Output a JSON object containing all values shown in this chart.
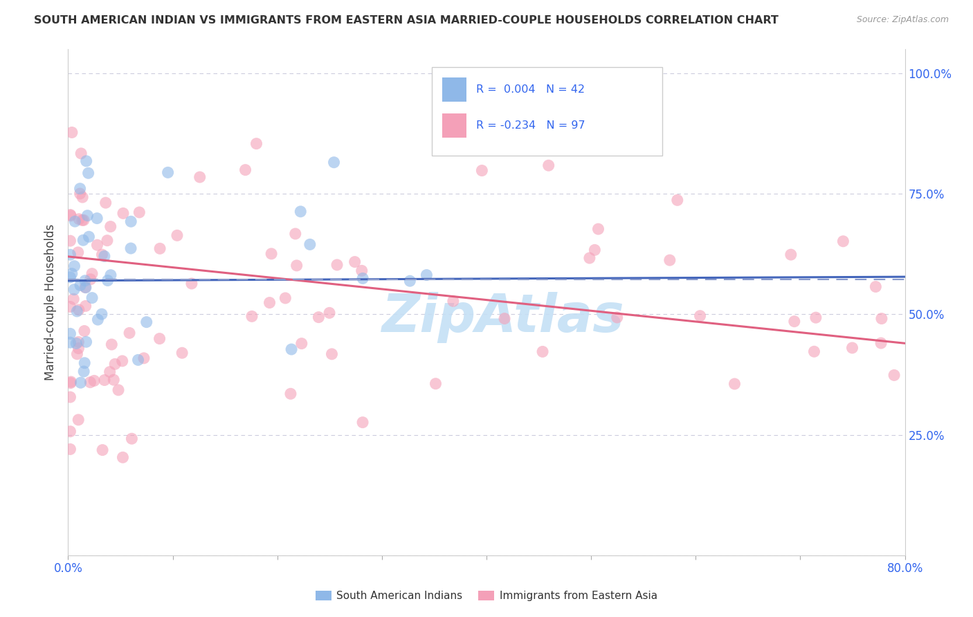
{
  "title": "SOUTH AMERICAN INDIAN VS IMMIGRANTS FROM EASTERN ASIA MARRIED-COUPLE HOUSEHOLDS CORRELATION CHART",
  "source": "Source: ZipAtlas.com",
  "ylabel": "Married-couple Households",
  "x_min": 0.0,
  "x_max": 0.8,
  "y_min": 0.0,
  "y_max": 1.05,
  "x_tick_positions": [
    0.0,
    0.1,
    0.2,
    0.3,
    0.4,
    0.5,
    0.6,
    0.7,
    0.8
  ],
  "x_tick_labels": [
    "0.0%",
    "",
    "",
    "",
    "",
    "",
    "",
    "",
    "80.0%"
  ],
  "y_tick_positions": [
    0.0,
    0.25,
    0.5,
    0.75,
    1.0
  ],
  "y_tick_labels_right": [
    "",
    "25.0%",
    "50.0%",
    "75.0%",
    "100.0%"
  ],
  "blue_color": "#8FB8E8",
  "pink_color": "#F4A0B8",
  "blue_line_color": "#4466BB",
  "pink_line_color": "#E06080",
  "dashed_line_y": 0.573,
  "dashed_line_color": "#8899CC",
  "grid_color": "#CCCCDD",
  "watermark_color": "#C5E0F5",
  "blue_R": 0.004,
  "blue_N": 42,
  "pink_R": -0.234,
  "pink_N": 97,
  "blue_trend_x0": 0.0,
  "blue_trend_y0": 0.57,
  "blue_trend_x1": 0.8,
  "blue_trend_y1": 0.578,
  "pink_trend_x0": 0.0,
  "pink_trend_y0": 0.62,
  "pink_trend_x1": 0.8,
  "pink_trend_y1": 0.44
}
